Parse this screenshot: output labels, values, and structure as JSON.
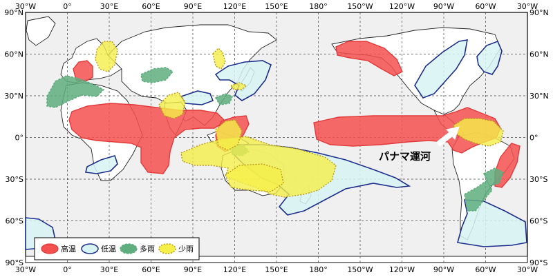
{
  "axes": {
    "top_lon_labels": [
      "30°W",
      "0°",
      "30°E",
      "60°E",
      "90°E",
      "120°E",
      "150°E",
      "180°",
      "150°W",
      "120°W",
      "90°W",
      "60°W",
      "30°W"
    ],
    "bottom_lon_labels": [
      "30°W",
      "0°",
      "30°E",
      "60°E",
      "90°E",
      "120°E",
      "150°E",
      "180°",
      "150°W",
      "120°W",
      "90°W",
      "60°W",
      "30°W"
    ],
    "left_lat_labels": [
      "90°N",
      "60°N",
      "30°N",
      "0°",
      "30°S",
      "60°S",
      "90°S"
    ],
    "right_lat_labels": [
      "90°N",
      "60°N",
      "30°N",
      "0°",
      "30°S",
      "60°S",
      "90°S"
    ]
  },
  "legend": {
    "items": [
      {
        "label": "高温",
        "fill": "#f45050",
        "stroke": "#e23a3a",
        "dashed": false
      },
      {
        "label": "低温",
        "fill": "#d8f3f3",
        "stroke": "#1c2d8c",
        "dashed": false
      },
      {
        "label": "多雨",
        "fill": "#5fae7f",
        "stroke": "#5fae7f",
        "dashed": true
      },
      {
        "label": "少雨",
        "fill": "#f5ef4a",
        "stroke": "#b89a1a",
        "dashed": true
      }
    ]
  },
  "annotation": {
    "label": "パナマ運河"
  },
  "colors": {
    "high_temp": "#f45050",
    "low_temp_fill": "#d8f3f3",
    "low_temp_stroke": "#1c2d8c",
    "wet": "#5fae7f",
    "dry": "#f5ef4a",
    "land": "#ffffff",
    "ocean": "#f0f0f0"
  }
}
